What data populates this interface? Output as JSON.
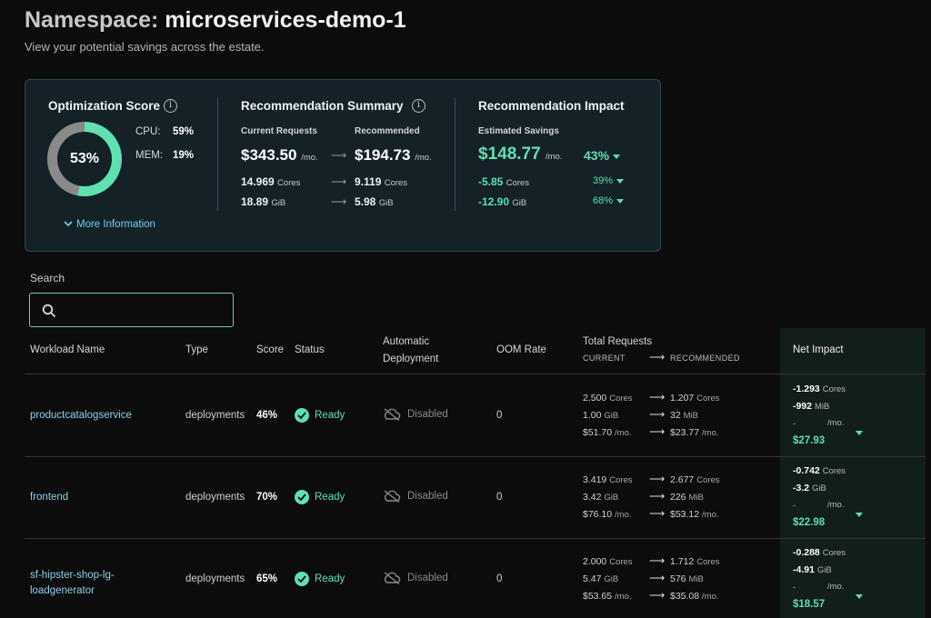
{
  "header": {
    "title_prefix": "Namespace:",
    "title_name": "microservices-demo-1",
    "subtitle": "View your potential savings across the estate."
  },
  "optimization": {
    "title": "Optimization Score",
    "score": "53%",
    "score_value": 53,
    "cpu_label": "CPU:",
    "cpu_value": "59%",
    "mem_label": "MEM:",
    "mem_value": "19%",
    "more_info": "More Information"
  },
  "summary": {
    "title": "Recommendation Summary",
    "current_label": "Current Requests",
    "recommended_label": "Recommended",
    "current_price": "$343.50",
    "recommended_price": "$194.73",
    "per_mo": "/mo.",
    "current_cores": "14.969",
    "recommended_cores": "9.119",
    "cores_unit": "Cores",
    "current_gib": "18.89",
    "recommended_gib": "5.98",
    "gib_unit": "GiB"
  },
  "impact": {
    "title": "Recommendation Impact",
    "estimated_label": "Estimated Savings",
    "savings": "$148.77",
    "per_mo": "/mo.",
    "savings_pct": "43%",
    "cores_delta": "-5.85",
    "cores_unit": "Cores",
    "cores_pct": "39%",
    "gib_delta": "-12.90",
    "gib_unit": "GiB",
    "gib_pct": "68%"
  },
  "search": {
    "label": "Search",
    "value": "",
    "placeholder": ""
  },
  "table": {
    "headers": {
      "workload": "Workload Name",
      "type": "Type",
      "score": "Score",
      "status": "Status",
      "auto_line1": "Automatic",
      "auto_line2": "Deployment",
      "oom": "OOM Rate",
      "total_requests": "Total Requests",
      "current": "CURRENT",
      "recommended": "RECOMMENDED",
      "net_impact": "Net Impact"
    },
    "rows": [
      {
        "name_line1": "productcatalogservice",
        "name_line2": "",
        "type": "deployments",
        "score": "46%",
        "status": "Ready",
        "auto": "Disabled",
        "oom": "0",
        "cur_cores": "2.500",
        "rec_cores": "1.207",
        "cur_mem": "1.00",
        "cur_mem_unit": "GiB",
        "rec_mem": "32",
        "rec_mem_unit": "MiB",
        "cur_cost": "$51.70",
        "rec_cost": "$23.77",
        "net_cores": "-1.293",
        "net_mem": "-992",
        "net_mem_unit": "MiB",
        "net_dash": "-",
        "net_total": "$27.93"
      },
      {
        "name_line1": "frontend",
        "name_line2": "",
        "type": "deployments",
        "score": "70%",
        "status": "Ready",
        "auto": "Disabled",
        "oom": "0",
        "cur_cores": "3.419",
        "rec_cores": "2.677",
        "cur_mem": "3.42",
        "cur_mem_unit": "GiB",
        "rec_mem": "226",
        "rec_mem_unit": "MiB",
        "cur_cost": "$76.10",
        "rec_cost": "$53.12",
        "net_cores": "-0.742",
        "net_mem": "-3.2",
        "net_mem_unit": "GiB",
        "net_dash": "-",
        "net_total": "$22.98"
      },
      {
        "name_line1": "sf-hipster-shop-lg-",
        "name_line2": "loadgenerator",
        "type": "deployments",
        "score": "65%",
        "status": "Ready",
        "auto": "Disabled",
        "oom": "0",
        "cur_cores": "2.000",
        "rec_cores": "1.712",
        "cur_mem": "5.47",
        "cur_mem_unit": "GiB",
        "rec_mem": "576",
        "rec_mem_unit": "MiB",
        "cur_cost": "$53.65",
        "rec_cost": "$35.08",
        "net_cores": "-0.288",
        "net_mem": "-4.91",
        "net_mem_unit": "GiB",
        "net_dash": "-",
        "net_total": "$18.57"
      }
    ],
    "units": {
      "cores": "Cores",
      "per_mo": "/mo."
    }
  },
  "colors": {
    "accent": "#5ee0b0",
    "panel": "#142228",
    "link": "#8ecfe8",
    "donut_track": "#8a8a8a"
  }
}
